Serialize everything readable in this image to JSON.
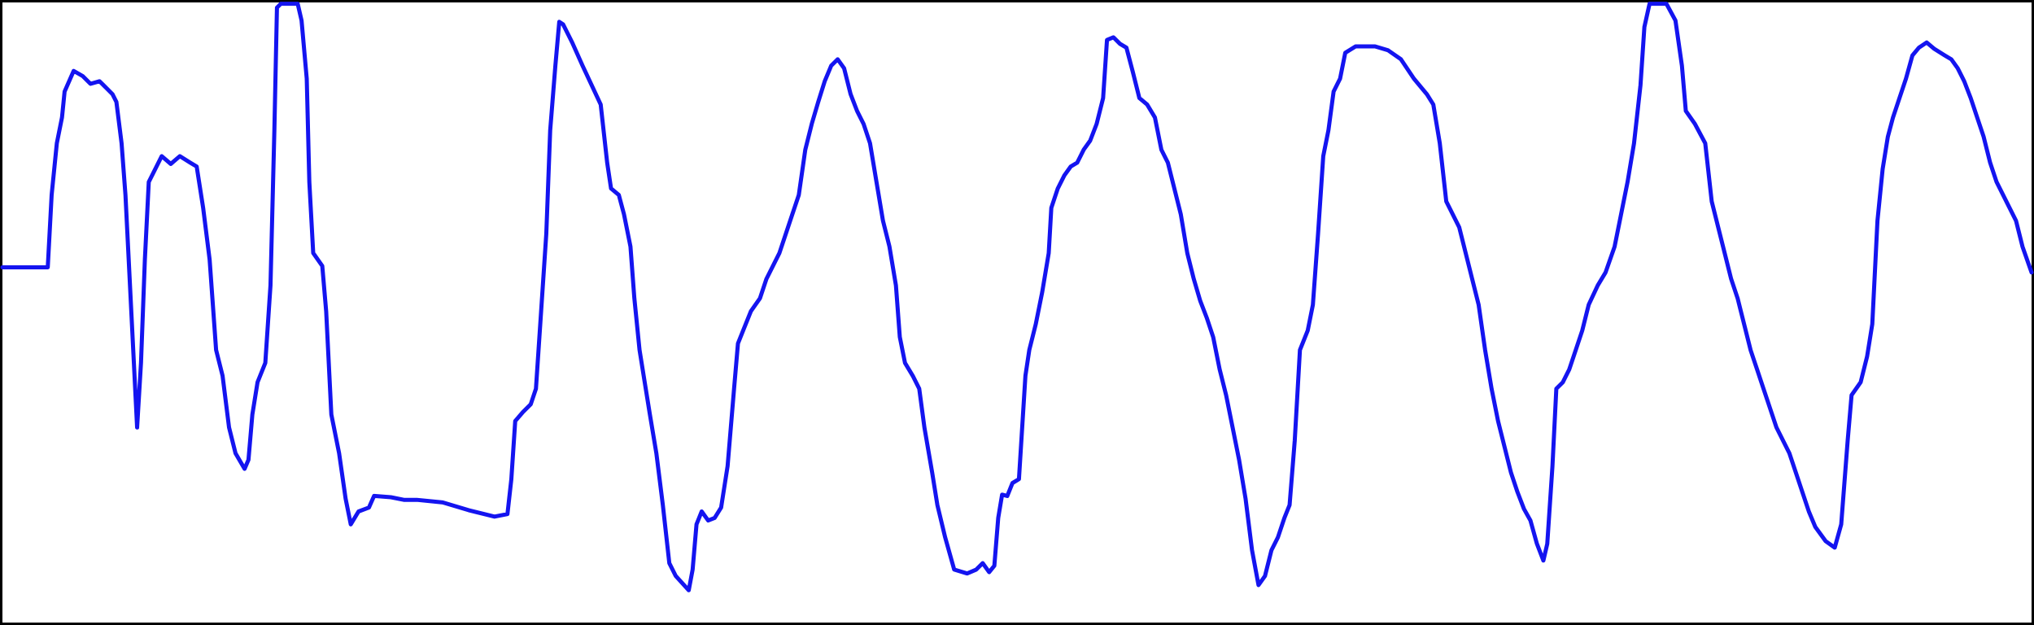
{
  "chart_data": {
    "type": "line",
    "color": "#1414f0",
    "xlim": [
      0,
      1567
    ],
    "ylim": [
      0,
      480
    ],
    "x": [
      0,
      35,
      38,
      42,
      46,
      48,
      55,
      62,
      68,
      75,
      85,
      88,
      92,
      95,
      98,
      101,
      104,
      107,
      110,
      113,
      118,
      123,
      130,
      137,
      145,
      150,
      155,
      160,
      165,
      170,
      175,
      180,
      187,
      190,
      193,
      197,
      203,
      207,
      210,
      212,
      215,
      228,
      231,
      235,
      237,
      240,
      247,
      250,
      254,
      260,
      265,
      269,
      275,
      283,
      287,
      300,
      310,
      320,
      340,
      360,
      380,
      390,
      393,
      396,
      402,
      408,
      412,
      416,
      420,
      423,
      427,
      430,
      433,
      440,
      448,
      455,
      462,
      467,
      470,
      476,
      480,
      485,
      488,
      492,
      496,
      500,
      505,
      510,
      515,
      520,
      530,
      533,
      536,
      540,
      545,
      550,
      555,
      560,
      565,
      568,
      572,
      578,
      585,
      590,
      600,
      605,
      610,
      615,
      620,
      625,
      630,
      635,
      640,
      645,
      650,
      655,
      660,
      665,
      670,
      675,
      680,
      685,
      690,
      693,
      697,
      703,
      708,
      712,
      718,
      722,
      728,
      735,
      745,
      752,
      757,
      762,
      766,
      769,
      772,
      776,
      780,
      785,
      790,
      793,
      798,
      803,
      808,
      810,
      815,
      820,
      825,
      830,
      835,
      840,
      845,
      850,
      853,
      858,
      863,
      868,
      873,
      878,
      884,
      890,
      895,
      900,
      905,
      910,
      915,
      920,
      925,
      930,
      935,
      940,
      945,
      950,
      955,
      960,
      965,
      970,
      975,
      980,
      985,
      990,
      994,
      998,
      1002,
      1008,
      1012,
      1016,
      1020,
      1024,
      1028,
      1033,
      1037,
      1045,
      1060,
      1070,
      1080,
      1090,
      1100,
      1105,
      1110,
      1115,
      1120,
      1125,
      1130,
      1135,
      1140,
      1145,
      1150,
      1155,
      1160,
      1165,
      1170,
      1175,
      1180,
      1185,
      1190,
      1193,
      1197,
      1200,
      1205,
      1210,
      1215,
      1220,
      1225,
      1232,
      1238,
      1245,
      1250,
      1255,
      1260,
      1265,
      1268,
      1272,
      1285,
      1292,
      1297,
      1300,
      1307,
      1315,
      1320,
      1325,
      1330,
      1335,
      1340,
      1345,
      1350,
      1355,
      1360,
      1365,
      1370,
      1375,
      1380,
      1385,
      1390,
      1395,
      1400,
      1408,
      1415,
      1420,
      1425,
      1428,
      1435,
      1440,
      1444,
      1448,
      1452,
      1456,
      1460,
      1465,
      1470,
      1475,
      1480,
      1486,
      1492,
      1500,
      1505,
      1510,
      1515,
      1520,
      1525,
      1530,
      1535,
      1540,
      1545,
      1550,
      1555,
      1560,
      1567
    ],
    "values": [
      275,
      275,
      331,
      371,
      391,
      411,
      427,
      423,
      417,
      419,
      409,
      403,
      371,
      331,
      271,
      211,
      151,
      201,
      281,
      341,
      351,
      361,
      355,
      361,
      356,
      353,
      321,
      281,
      211,
      191,
      151,
      131,
      119,
      126,
      161,
      186,
      201,
      261,
      381,
      476,
      479,
      479,
      466,
      421,
      341,
      286,
      276,
      241,
      161,
      131,
      96,
      76,
      86,
      89,
      98,
      97,
      95,
      95,
      93,
      87,
      82,
      84,
      111,
      156,
      163,
      169,
      181,
      241,
      301,
      381,
      431,
      465,
      463,
      449,
      431,
      416,
      401,
      356,
      336,
      331,
      316,
      291,
      251,
      211,
      186,
      161,
      131,
      91,
      46,
      36,
      25,
      41,
      76,
      86,
      79,
      81,
      89,
      121,
      181,
      216,
      226,
      241,
      251,
      266,
      286,
      301,
      316,
      331,
      366,
      386,
      403,
      419,
      431,
      436,
      429,
      409,
      396,
      386,
      371,
      341,
      311,
      291,
      261,
      221,
      201,
      191,
      181,
      151,
      116,
      91,
      66,
      41,
      38,
      41,
      46,
      39,
      44,
      81,
      99,
      98,
      108,
      111,
      191,
      211,
      231,
      256,
      286,
      321,
      336,
      346,
      353,
      356,
      366,
      373,
      386,
      406,
      451,
      453,
      448,
      445,
      426,
      406,
      401,
      391,
      366,
      356,
      336,
      316,
      286,
      266,
      249,
      236,
      221,
      196,
      176,
      151,
      126,
      96,
      56,
      29,
      36,
      56,
      66,
      81,
      91,
      141,
      211,
      226,
      246,
      301,
      361,
      381,
      411,
      421,
      441,
      446,
      446,
      443,
      436,
      421,
      409,
      401,
      371,
      326,
      316,
      306,
      286,
      266,
      246,
      211,
      181,
      156,
      136,
      116,
      101,
      88,
      79,
      61,
      48,
      61,
      121,
      181,
      186,
      196,
      211,
      226,
      246,
      261,
      271,
      291,
      316,
      341,
      371,
      416,
      461,
      479,
      479,
      466,
      431,
      396,
      386,
      371,
      326,
      306,
      286,
      266,
      251,
      231,
      211,
      196,
      181,
      166,
      151,
      141,
      131,
      116,
      101,
      86,
      74,
      63,
      58,
      76,
      141,
      176,
      186,
      206,
      231,
      311,
      351,
      376,
      391,
      406,
      421,
      439,
      445,
      449,
      444,
      439,
      436,
      429,
      419,
      406,
      391,
      376,
      356,
      341,
      331,
      321,
      311,
      291,
      271
    ]
  }
}
